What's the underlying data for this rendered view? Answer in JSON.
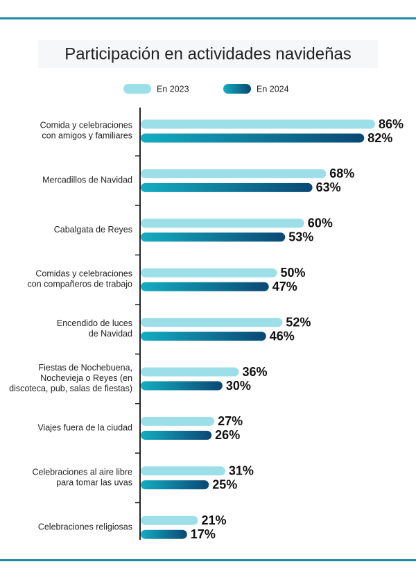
{
  "chart_data": {
    "type": "hbar",
    "title": "Participación en actividades navideñas",
    "categories": [
      "Comida y celebraciones\ncon amigos y familiares",
      "Mercadillos de Navidad",
      "Cabalgata de Reyes",
      "Comidas y celebraciones\ncon compañeros de trabajo",
      "Encendido de luces\nde Navidad",
      "Fiestas de Nochebuena,\nNochevieja o Reyes (en\ndiscoteca, pub, salas de fiestas)",
      "Viajes fuera de la ciudad",
      "Celebraciones al aire libre\npara tomar las uvas",
      "Celebraciones religiosas"
    ],
    "series": [
      {
        "name": "En 2023",
        "color": "#9ddfe9",
        "values": [
          86,
          68,
          60,
          50,
          52,
          36,
          27,
          31,
          21
        ],
        "value_labels": [
          "86%",
          "68%",
          "60%",
          "50%",
          "52%",
          "36%",
          "27%",
          "31%",
          "21%"
        ]
      },
      {
        "name": "En 2024",
        "color": "#0e6e92",
        "gradient": [
          "#14adc1",
          "#0a4874"
        ],
        "values": [
          82,
          63,
          53,
          47,
          46,
          30,
          26,
          25,
          17
        ],
        "value_labels": [
          "82%",
          "63%",
          "53%",
          "47%",
          "46%",
          "30%",
          "26%",
          "25%",
          "17%"
        ]
      }
    ],
    "legend": "top"
  }
}
